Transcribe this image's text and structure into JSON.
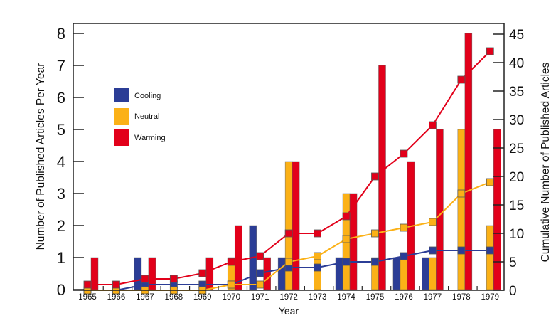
{
  "chart_data": {
    "type": "bar",
    "title": "",
    "xlabel": "Year",
    "ylabel": "Number of Published Articles Per Year",
    "y2label": "Cumulative Number of Published Articles",
    "ylim": [
      0,
      8
    ],
    "y2lim": [
      0,
      45
    ],
    "yticks": [
      "0",
      "1",
      "2",
      "3",
      "4",
      "5",
      "6",
      "7",
      "8"
    ],
    "y2ticks": [
      "0",
      "5",
      "10",
      "15",
      "20",
      "25",
      "30",
      "35",
      "40",
      "45"
    ],
    "categories": [
      "1965",
      "1966",
      "1967",
      "1968",
      "1969",
      "1970",
      "1971",
      "1972",
      "1973",
      "1974",
      "1975",
      "1976",
      "1977",
      "1978",
      "1979"
    ],
    "grid": false,
    "legend_position": "upper-left",
    "series": [
      {
        "name": "Cooling",
        "color": "#2b3d96",
        "type": "bar",
        "axis": "left",
        "values": [
          0,
          0,
          1,
          0,
          0,
          0,
          2,
          1,
          0,
          1,
          0,
          1,
          1,
          0,
          0
        ]
      },
      {
        "name": "Neutral",
        "color": "#fbb117",
        "type": "bar",
        "axis": "left",
        "values": [
          0,
          0,
          0,
          0,
          0,
          1,
          0,
          4,
          1,
          3,
          1,
          1,
          1,
          5,
          2
        ]
      },
      {
        "name": "Warming",
        "color": "#e2001a",
        "type": "bar",
        "axis": "left",
        "values": [
          1,
          0,
          1,
          0,
          1,
          2,
          1,
          4,
          0,
          3,
          7,
          4,
          5,
          8,
          5
        ]
      },
      {
        "name": "Cooling (cumulative)",
        "color": "#2b3d96",
        "type": "line",
        "axis": "right",
        "values": [
          0,
          0,
          1,
          1,
          1,
          1,
          3,
          4,
          4,
          5,
          5,
          6,
          7,
          7,
          7
        ]
      },
      {
        "name": "Neutral (cumulative)",
        "color": "#fbb117",
        "type": "line",
        "axis": "right",
        "values": [
          0,
          0,
          0,
          0,
          0,
          1,
          1,
          5,
          6,
          9,
          10,
          11,
          12,
          17,
          19
        ]
      },
      {
        "name": "Warming (cumulative)",
        "color": "#e2001a",
        "type": "line",
        "axis": "right",
        "values": [
          1,
          1,
          2,
          2,
          3,
          5,
          6,
          10,
          10,
          13,
          20,
          24,
          29,
          37,
          42
        ]
      }
    ],
    "legend": [
      {
        "label": "Cooling",
        "color": "#2b3d96"
      },
      {
        "label": "Neutral",
        "color": "#fbb117"
      },
      {
        "label": "Warming",
        "color": "#e2001a"
      }
    ]
  }
}
